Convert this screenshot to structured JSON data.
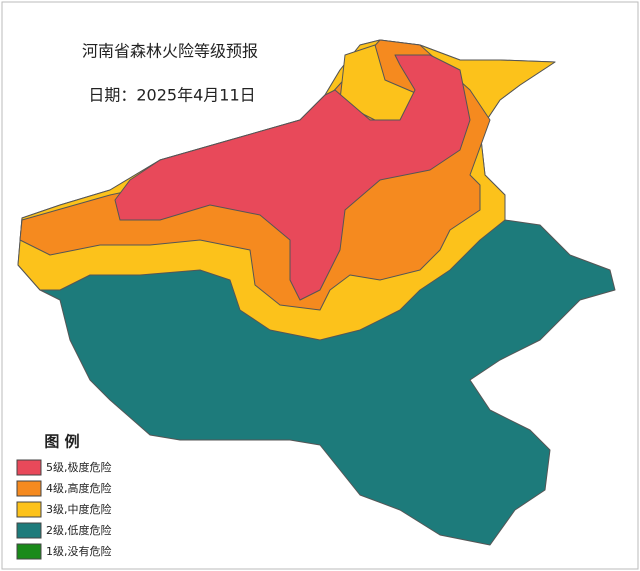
{
  "title": "河南省森林火险等级预报",
  "date": "日期：2025年4月11日",
  "legend": {
    "title": "图 例",
    "items": [
      {
        "label": "5级,极度危险",
        "color": "#e8495a"
      },
      {
        "label": "4级,高度危险",
        "color": "#f58a1f"
      },
      {
        "label": "3级,中度危险",
        "color": "#fcc21b"
      },
      {
        "label": "2级,低度危险",
        "color": "#1d7b7b"
      },
      {
        "label": "1级,没有危险",
        "color": "#1a8a1a"
      }
    ]
  }
}
